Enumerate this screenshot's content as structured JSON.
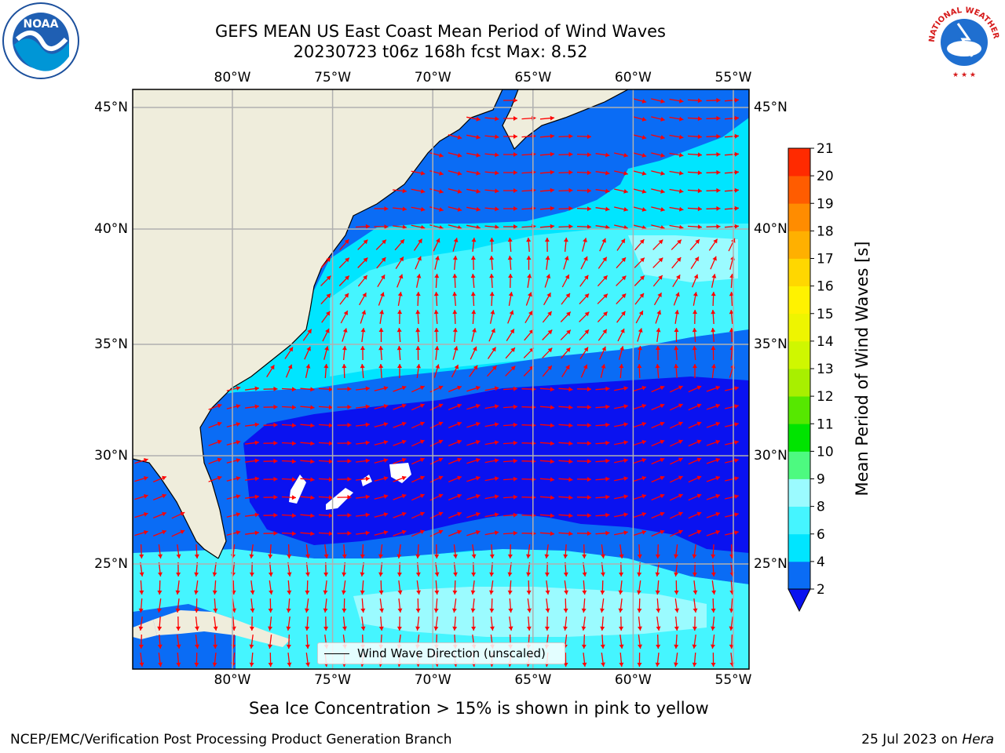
{
  "title": {
    "line1": "GEFS MEAN US East Coast Mean Period of Wind Waves",
    "line2": "20230723 t06z 168h fcst   Max: 8.52"
  },
  "logos": {
    "left": {
      "name": "noaa-logo",
      "text": "NOAA"
    },
    "right": {
      "name": "nws-logo",
      "text": "NATIONAL WEATHER SERVICE"
    }
  },
  "map": {
    "lon_ticks": [
      "80°W",
      "75°W",
      "70°W",
      "65°W",
      "60°W",
      "55°W"
    ],
    "lat_ticks": [
      "45°N",
      "40°N",
      "35°N",
      "30°N",
      "25°N"
    ],
    "legend_label": "Wind Wave Direction (unscaled)",
    "colors": {
      "land": "#efeddc",
      "arrow": "#ff0000",
      "grid": "#b0b0b0"
    }
  },
  "colorbar": {
    "label": "Mean Period of Wind Waves [s]",
    "ticks": [
      "2",
      "4",
      "6",
      "8",
      "9",
      "10",
      "11",
      "12",
      "13",
      "14",
      "15",
      "16",
      "17",
      "18",
      "19",
      "20",
      "21"
    ],
    "colors": [
      "#0a6cf5",
      "#00e5ff",
      "#45f5ff",
      "#9bfbff",
      "#4dfa80",
      "#00e400",
      "#56e800",
      "#a8ef00",
      "#cff700",
      "#eef500",
      "#fff200",
      "#ffd700",
      "#ffb000",
      "#ff8c00",
      "#ff5c00",
      "#ff2a00"
    ],
    "under_color": "#0a12f0"
  },
  "note": "Sea Ice Concentration > 15% is shown in pink to yellow",
  "footer": {
    "left": "NCEP/EMC/Verification Post Processing Product Generation Branch",
    "date": "25 Jul 2023 on ",
    "host": "Hera"
  }
}
